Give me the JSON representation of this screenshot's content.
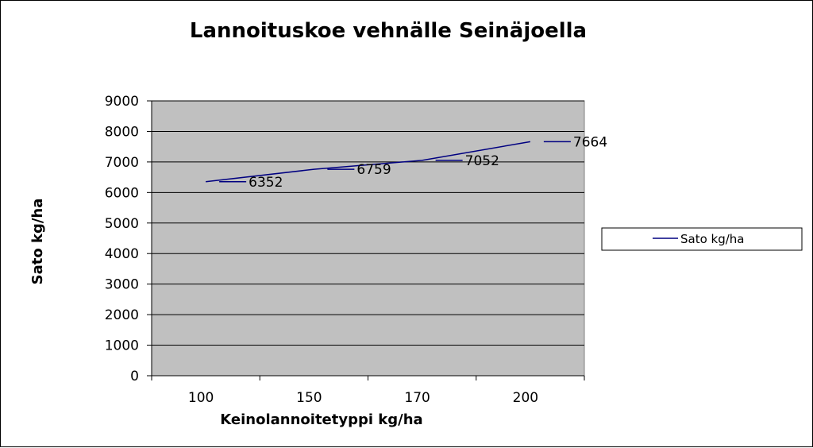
{
  "chart_data": {
    "type": "line",
    "title": "Lannoituskoe vehnälle Seinäjoella",
    "xlabel": "Keinolannoitetyppi kg/ha",
    "ylabel": "Sato kg/ha",
    "categories": [
      "100",
      "150",
      "170",
      "200"
    ],
    "series": [
      {
        "name": "Sato kg/ha",
        "values": [
          6352,
          6759,
          7052,
          7664
        ],
        "color": "#000080"
      }
    ],
    "ylim": [
      0,
      9000
    ],
    "yticks": [
      0,
      1000,
      2000,
      3000,
      4000,
      5000,
      6000,
      7000,
      8000,
      9000
    ],
    "grid": true,
    "plot_background": "#c0c0c0",
    "legend": "right",
    "data_labels": true
  }
}
